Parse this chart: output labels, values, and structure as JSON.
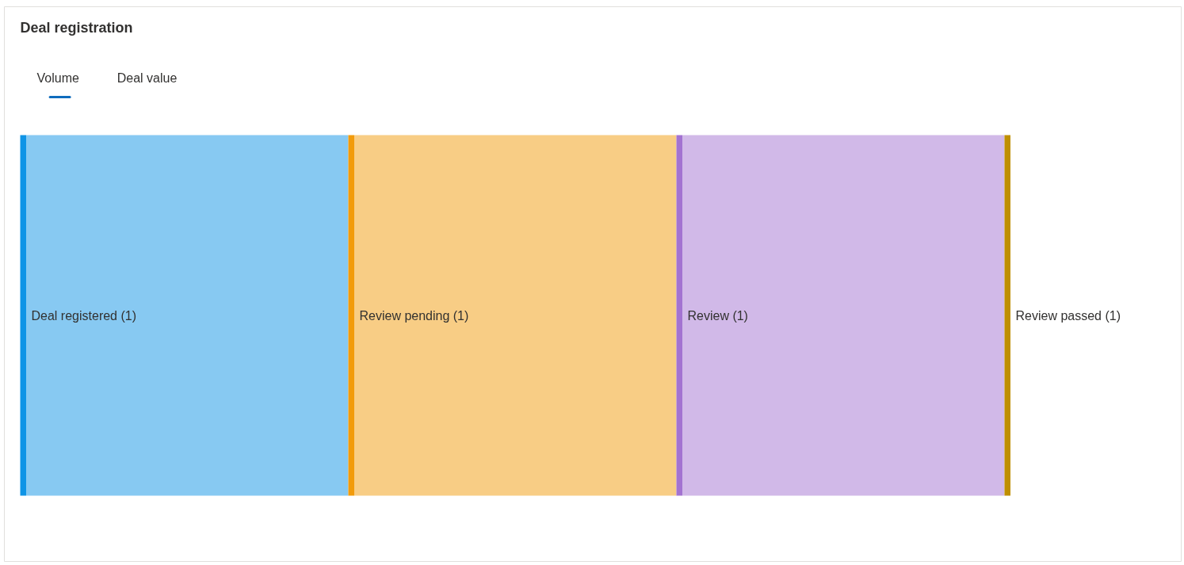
{
  "chart_data": {
    "type": "other",
    "title": "Deal registration",
    "annotations": [
      "Volume",
      "Deal value"
    ],
    "categories": [
      "Deal registered",
      "Review pending",
      "Review",
      "Review passed"
    ],
    "values": [
      1,
      1,
      1,
      1
    ],
    "value_labels": [
      "(1)",
      "(1)",
      "(1)",
      "(1)"
    ],
    "colors": [
      "#0f94e6",
      "#f29b0b",
      "#a373d1",
      "#bf8f00"
    ]
  }
}
